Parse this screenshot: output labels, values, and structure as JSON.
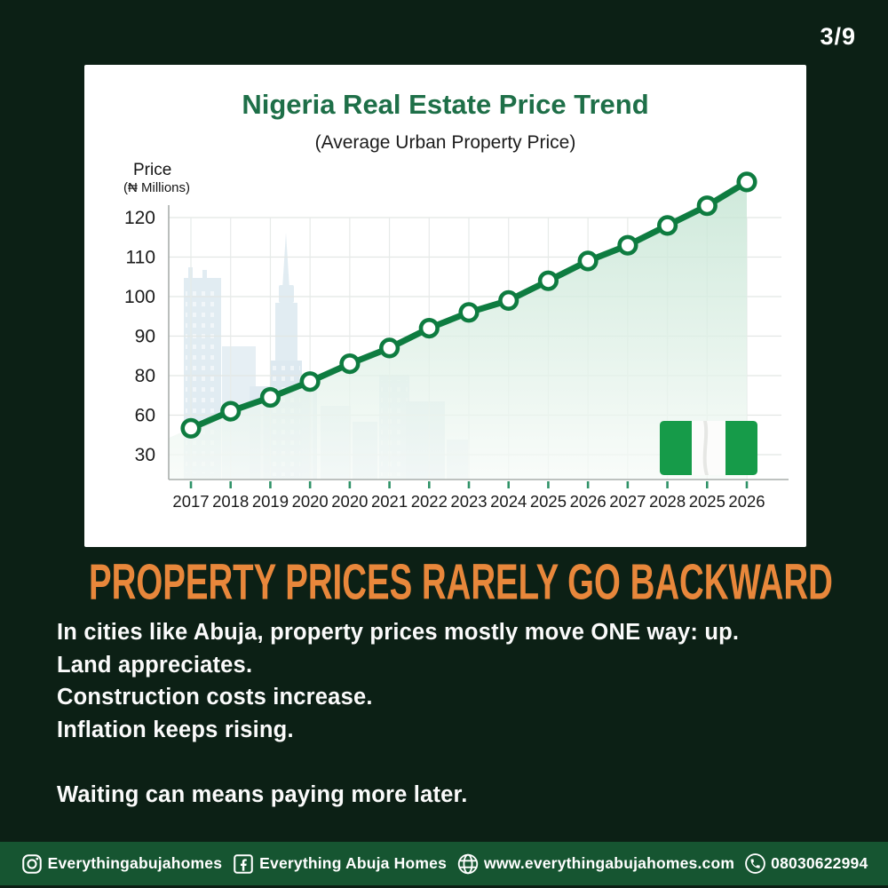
{
  "page": {
    "background_color": "#0c2015",
    "slide_indicator": "3/9"
  },
  "chart_data": {
    "type": "line",
    "title": "Nigeria Real Estate Price Trend",
    "subtitle": "(Average Urban Property Price)",
    "ylabel_line1": "Price",
    "ylabel_line2": "(₦ Millions)",
    "categories": [
      "2017",
      "2018",
      "2019",
      "2020",
      "2020",
      "2021",
      "2022",
      "2023",
      "2024",
      "2025",
      "2026",
      "2027",
      "2028",
      "2025",
      "2026"
    ],
    "values": [
      50,
      62,
      69,
      77,
      83,
      87,
      92,
      96,
      99,
      104,
      109,
      113,
      118,
      123,
      129
    ],
    "y_ticks": [
      30,
      60,
      80,
      90,
      100,
      110,
      120
    ],
    "grid": true,
    "area_fill": true,
    "legend": "none",
    "line_color": "#0e7c40",
    "marker_style": "white circle with green ring",
    "background_motifs": [
      "city-skyline-silhouette",
      "nigeria-flag"
    ]
  },
  "headline": {
    "text": "PROPERTY PRICES RARELY GO BACKWARD",
    "color": "#e8873b"
  },
  "body": {
    "lines": [
      "In cities like Abuja, property prices mostly move ONE way: up.",
      "Land appreciates.",
      "Construction costs increase.",
      "Inflation keeps rising.",
      "",
      "Waiting can means paying more later."
    ]
  },
  "footer": {
    "background_color": "#165531",
    "items": [
      {
        "icon": "instagram-icon",
        "label": "Everythingabujahomes"
      },
      {
        "icon": "facebook-icon",
        "label": "Everything Abuja Homes"
      },
      {
        "icon": "globe-icon",
        "label": "www.everythingabujahomes.com"
      },
      {
        "icon": "phone-icon",
        "label": "08030622994"
      }
    ]
  }
}
